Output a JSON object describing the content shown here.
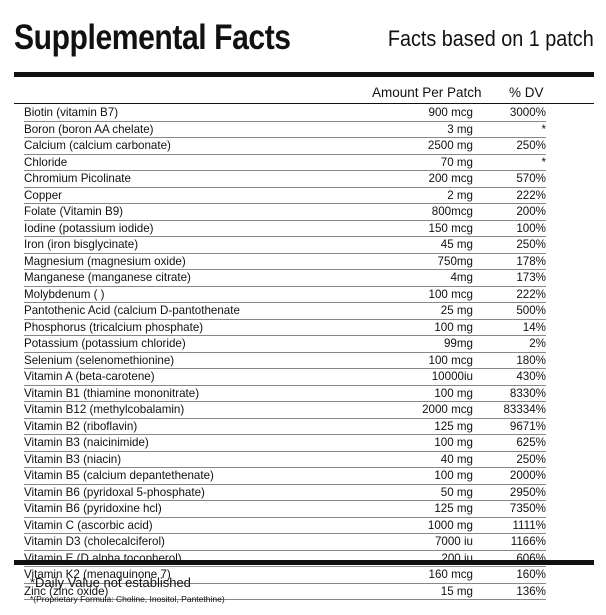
{
  "header": {
    "title": "Supplemental Facts",
    "subtitle": "Facts based on 1 patch"
  },
  "columns": {
    "amount": "Amount Per Patch",
    "dv": "% DV"
  },
  "rows": [
    {
      "name": "Biotin (vitamin B7)",
      "amount": "900 mcg",
      "dv": "3000%"
    },
    {
      "name": "Boron (boron AA chelate)",
      "amount": "3 mg",
      "dv": "*"
    },
    {
      "name": "Calcium (calcium carbonate)",
      "amount": "2500 mg",
      "dv": "250%"
    },
    {
      "name": "Chloride",
      "amount": "70 mg",
      "dv": "*"
    },
    {
      "name": "Chromium Picolinate",
      "amount": "200 mcg",
      "dv": "570%"
    },
    {
      "name": "Copper",
      "amount": "2 mg",
      "dv": "222%"
    },
    {
      "name": "Folate (Vitamin B9)",
      "amount": "800mcg",
      "dv": "200%"
    },
    {
      "name": "Iodine (potassium iodide)",
      "amount": "150 mcg",
      "dv": "100%"
    },
    {
      "name": "Iron (iron bisglycinate)",
      "amount": "45 mg",
      "dv": "250%"
    },
    {
      "name": "Magnesium (magnesium oxide)",
      "amount": "750mg",
      "dv": "178%"
    },
    {
      "name": "Manganese (manganese citrate)",
      "amount": "4mg",
      "dv": "173%"
    },
    {
      "name": "Molybdenum (                    )",
      "amount": "100 mcg",
      "dv": "222%"
    },
    {
      "name": "Pantothenic Acid (calcium D-pantothenate",
      "amount": "25 mg",
      "dv": "500%"
    },
    {
      "name": "Phosphorus (tricalcium phosphate)",
      "amount": "100 mg",
      "dv": "14%"
    },
    {
      "name": "Potassium (potassium chloride)",
      "amount": "99mg",
      "dv": "2%"
    },
    {
      "name": "Selenium (selenomethionine)",
      "amount": "100 mcg",
      "dv": "180%"
    },
    {
      "name": "Vitamin A (beta-carotene)",
      "amount": "10000iu",
      "dv": "430%"
    },
    {
      "name": "Vitamin B1 (thiamine mononitrate)",
      "amount": "100 mg",
      "dv": "8330%"
    },
    {
      "name": "Vitamin B12 (methylcobalamin)",
      "amount": "2000 mcg",
      "dv": "83334%"
    },
    {
      "name": "Vitamin B2 (riboflavin)",
      "amount": "125 mg",
      "dv": "9671%"
    },
    {
      "name": "Vitamin B3 (naicinimide)",
      "amount": "100 mg",
      "dv": "625%"
    },
    {
      "name": "Vitamin B3 (niacin)",
      "amount": "40 mg",
      "dv": "250%"
    },
    {
      "name": "Vitamin B5 (calcium depantethenate)",
      "amount": "100 mg",
      "dv": "2000%"
    },
    {
      "name": "Vitamin B6 (pyridoxal 5-phosphate)",
      "amount": "50 mg",
      "dv": "2950%"
    },
    {
      "name": "Vitamin B6 (pyridoxine hcl)",
      "amount": "125 mg",
      "dv": "7350%"
    },
    {
      "name": "Vitamin C (ascorbic acid)",
      "amount": "1000 mg",
      "dv": "1111%"
    },
    {
      "name": "Vitamin D3 (cholecalciferol)",
      "amount": "7000 iu",
      "dv": "1166%"
    },
    {
      "name": "Vitamin E (D alpha tocopherol)",
      "amount": "200 iu",
      "dv": "606%"
    },
    {
      "name": "Vitamin K2 (menaquinone 7)",
      "amount": "160 mcg",
      "dv": "160%"
    },
    {
      "name": "Zinc (zinc oxide)",
      "amount": "15 mg",
      "dv": "136%"
    }
  ],
  "footer": {
    "note1": "*Daily Value not established",
    "note2": "*(Proprietary Formula: Choline, Inositol,  Pantethine)"
  }
}
